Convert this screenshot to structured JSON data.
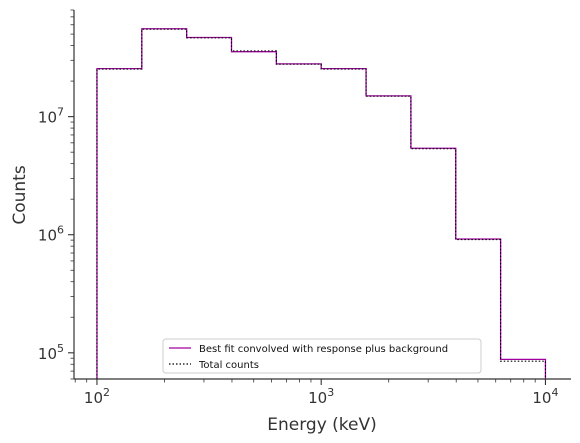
{
  "chart_data": {
    "type": "line",
    "xlabel": "Energy (keV)",
    "ylabel": "Counts",
    "xscale": "log",
    "yscale": "log",
    "xlim": [
      79,
      13000
    ],
    "ylim": [
      60000,
      80000000
    ],
    "x_ticks": [
      {
        "value": 100,
        "base": "10",
        "exp": "2"
      },
      {
        "value": 1000,
        "base": "10",
        "exp": "3"
      },
      {
        "value": 10000,
        "base": "10",
        "exp": "4"
      }
    ],
    "y_ticks": [
      {
        "value": 100000,
        "base": "10",
        "exp": "5"
      },
      {
        "value": 1000000,
        "base": "10",
        "exp": "6"
      },
      {
        "value": 10000000,
        "base": "10",
        "exp": "7"
      }
    ],
    "bin_edges": [
      100,
      158.5,
      251.2,
      398.1,
      631,
      1000,
      1585,
      2512,
      3981,
      6310,
      10000
    ],
    "series": [
      {
        "name": "Best fit convolved with response plus background",
        "style": "solid",
        "color": "#a000a0",
        "values": [
          25500000,
          55500000,
          46800000,
          35500000,
          28000000,
          25500000,
          15000000,
          5400000,
          920000,
          88000
        ]
      },
      {
        "name": "Total counts",
        "style": "dotted",
        "color": "#000000",
        "values": [
          25300000,
          55000000,
          46500000,
          36000000,
          27800000,
          25300000,
          14900000,
          5350000,
          910000,
          85000
        ]
      }
    ],
    "legend_position": "lower center",
    "grid": false
  }
}
